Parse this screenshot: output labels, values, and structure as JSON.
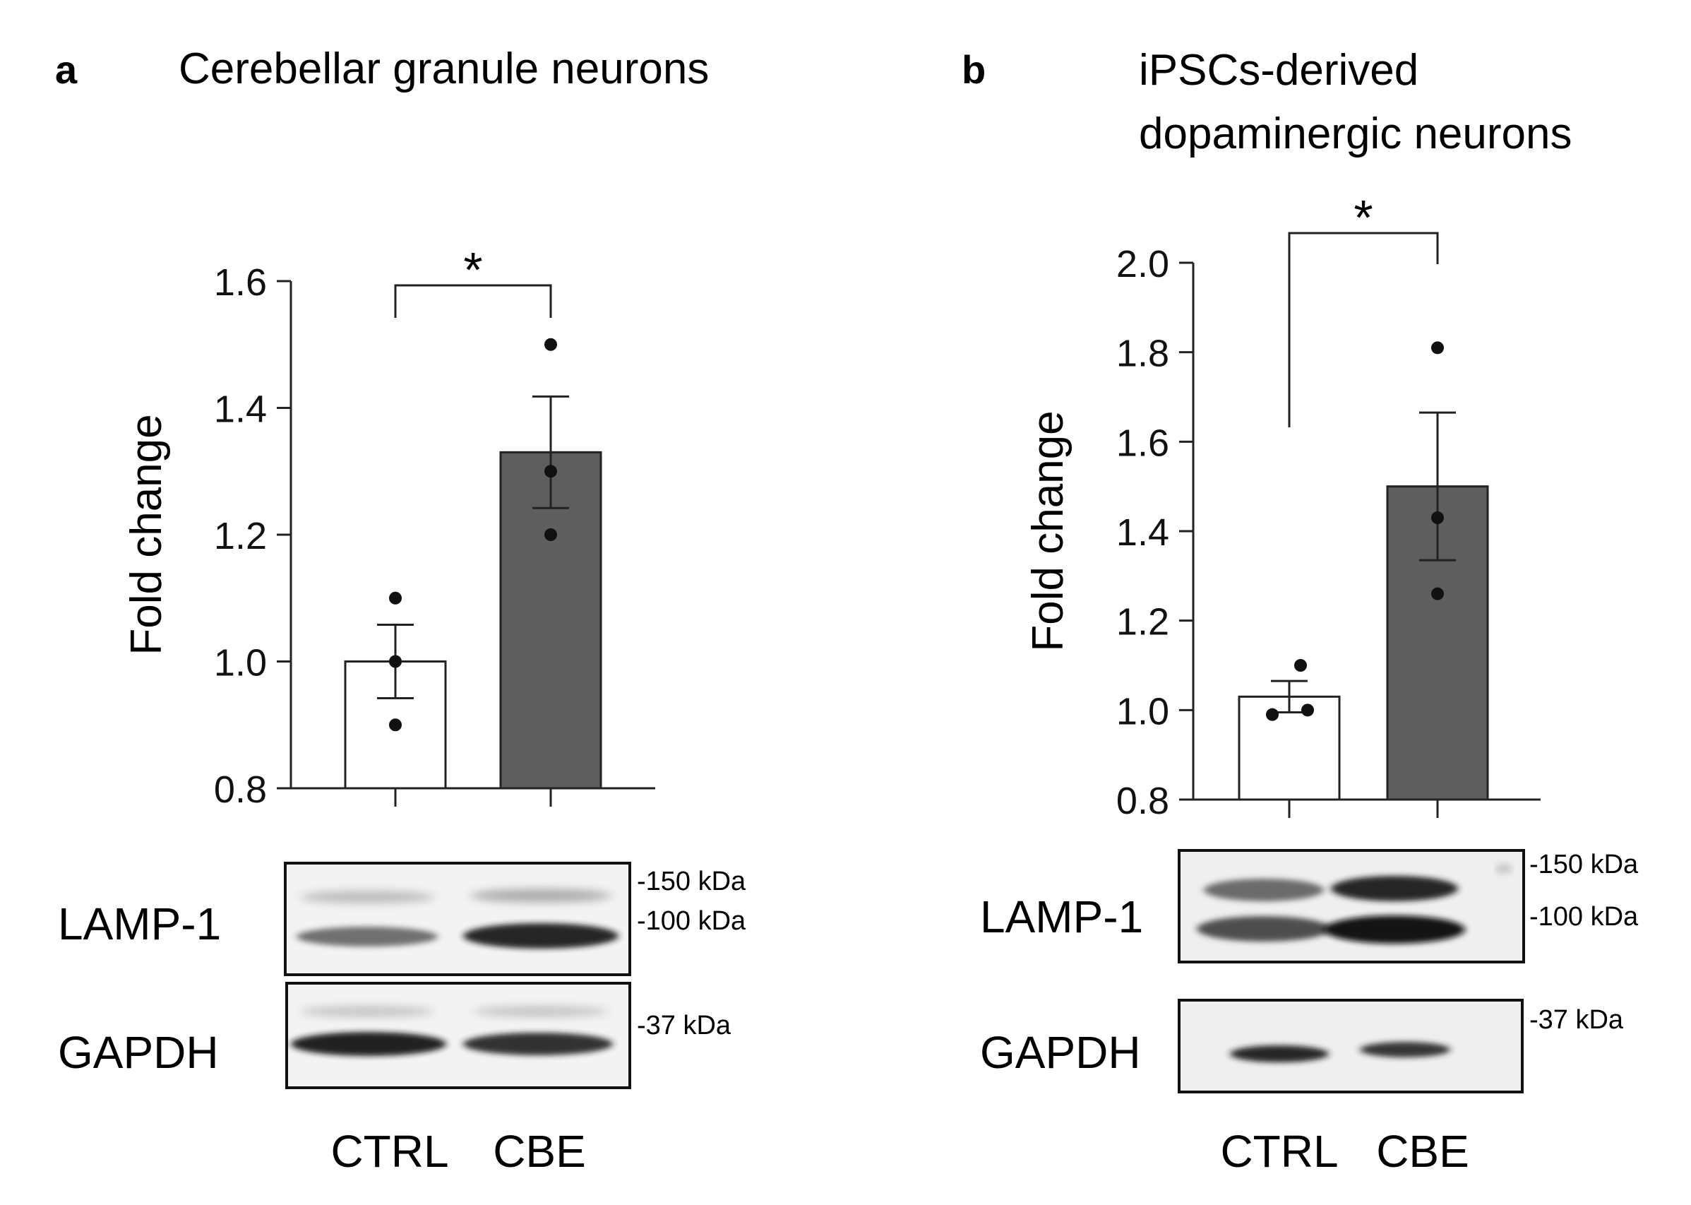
{
  "panels": [
    {
      "letter": "a",
      "title_lines": [
        "Cerebellar granule neurons"
      ],
      "significance": "*",
      "blots": [
        {
          "protein": "LAMP-1",
          "markers": [
            "-150 kDa",
            "-100 kDa"
          ]
        },
        {
          "protein": "GAPDH",
          "markers": [
            "-37 kDa"
          ]
        }
      ],
      "lane_labels": [
        "CTRL",
        "CBE"
      ]
    },
    {
      "letter": "b",
      "title_lines": [
        "iPSCs-derived",
        "dopaminergic neurons"
      ],
      "significance": "*",
      "blots": [
        {
          "protein": "LAMP-1",
          "markers": [
            "-150 kDa",
            "-100 kDa"
          ]
        },
        {
          "protein": "GAPDH",
          "markers": [
            "-37 kDa"
          ]
        }
      ],
      "lane_labels": [
        "CTRL",
        "CBE"
      ]
    }
  ],
  "colors": {
    "ctrl_bar": "#ffffff",
    "cbe_bar": "#5e5e5e",
    "axis": "#222222",
    "point": "#111111"
  },
  "chart_data": [
    {
      "type": "bar",
      "title": "Cerebellar granule neurons",
      "xlabel": "",
      "ylabel": "Fold change",
      "ylim": [
        0.8,
        1.6
      ],
      "yticks": [
        0.8,
        1.0,
        1.2,
        1.4,
        1.6
      ],
      "ytick_labels": [
        "0.8",
        "1.0",
        "1.2",
        "1.4",
        "1.6"
      ],
      "categories": [
        "CTRL",
        "CBE"
      ],
      "values": [
        1.0,
        1.33
      ],
      "sem": [
        0.058,
        0.088
      ],
      "points": [
        [
          1.1,
          1.0,
          0.9
        ],
        [
          1.5,
          1.3,
          1.2
        ]
      ],
      "significance": "*",
      "grid": false
    },
    {
      "type": "bar",
      "title": "iPSCs-derived dopaminergic neurons",
      "xlabel": "",
      "ylabel": "Fold change",
      "ylim": [
        0.8,
        2.0
      ],
      "yticks": [
        0.8,
        1.0,
        1.2,
        1.4,
        1.6,
        1.8,
        2.0
      ],
      "ytick_labels": [
        "0.8",
        "1.0",
        "1.2",
        "1.4",
        "1.6",
        "1.8",
        "2.0"
      ],
      "categories": [
        "CTRL",
        "CBE"
      ],
      "values": [
        1.03,
        1.5
      ],
      "sem": [
        0.035,
        0.165
      ],
      "points": [
        [
          1.1,
          0.99,
          1.0
        ],
        [
          1.81,
          1.43,
          1.26
        ]
      ],
      "significance": "*",
      "grid": false
    }
  ]
}
